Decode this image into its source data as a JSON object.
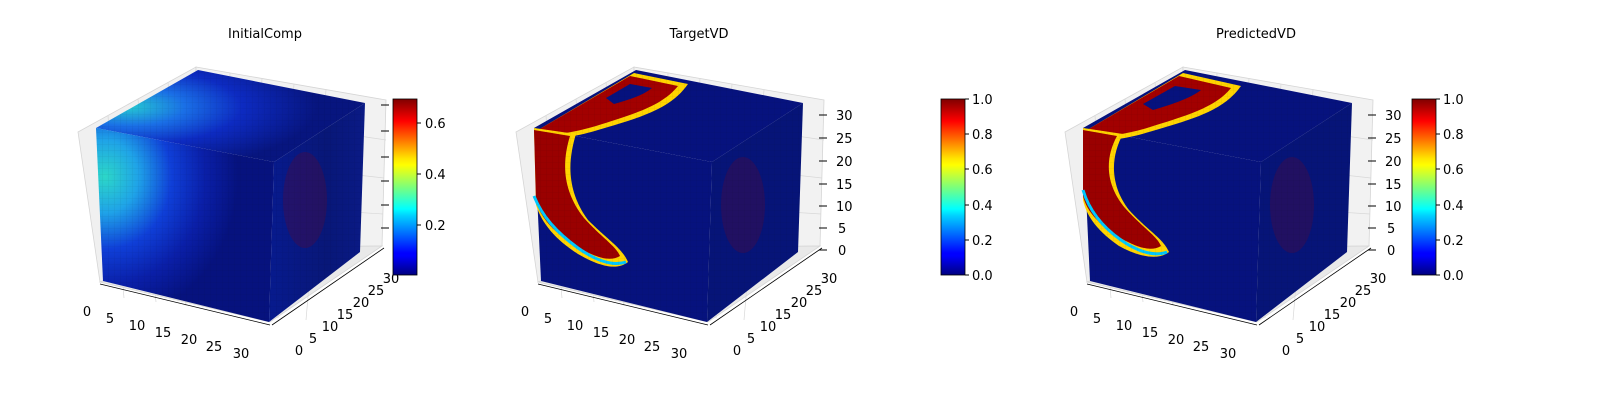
{
  "chart_data": [
    {
      "type": "heatmap",
      "title": "InitialComp",
      "x_ticks": [
        "0",
        "5",
        "10",
        "15",
        "20",
        "25",
        "30"
      ],
      "y_ticks": [
        "0",
        "5",
        "10",
        "15",
        "20",
        "25",
        "30"
      ],
      "z_ticks": [],
      "colorbar": {
        "min": 0.02,
        "max": 0.7,
        "ticks": [
          "0.2",
          "0.4",
          "0.6"
        ]
      },
      "colormap": "jet",
      "grid": true
    },
    {
      "type": "heatmap",
      "title": "TargetVD",
      "x_ticks": [
        "0",
        "5",
        "10",
        "15",
        "20",
        "25",
        "30"
      ],
      "y_ticks": [
        "0",
        "5",
        "10",
        "15",
        "20",
        "25",
        "30"
      ],
      "z_ticks": [
        "0",
        "5",
        "10",
        "15",
        "20",
        "25",
        "30"
      ],
      "colorbar": {
        "min": 0.0,
        "max": 1.0,
        "ticks": [
          "0.0",
          "0.2",
          "0.4",
          "0.6",
          "0.8",
          "1.0"
        ]
      },
      "colormap": "jet",
      "grid": true
    },
    {
      "type": "heatmap",
      "title": "PredictedVD",
      "x_ticks": [
        "0",
        "5",
        "10",
        "15",
        "20",
        "25",
        "30"
      ],
      "y_ticks": [
        "0",
        "5",
        "10",
        "15",
        "20",
        "25",
        "30"
      ],
      "z_ticks": [
        "0",
        "5",
        "10",
        "15",
        "20",
        "25",
        "30"
      ],
      "colorbar": {
        "min": 0.0,
        "max": 1.0,
        "ticks": [
          "0.0",
          "0.2",
          "0.4",
          "0.6",
          "0.8",
          "1.0"
        ]
      },
      "colormap": "jet",
      "grid": true
    }
  ]
}
